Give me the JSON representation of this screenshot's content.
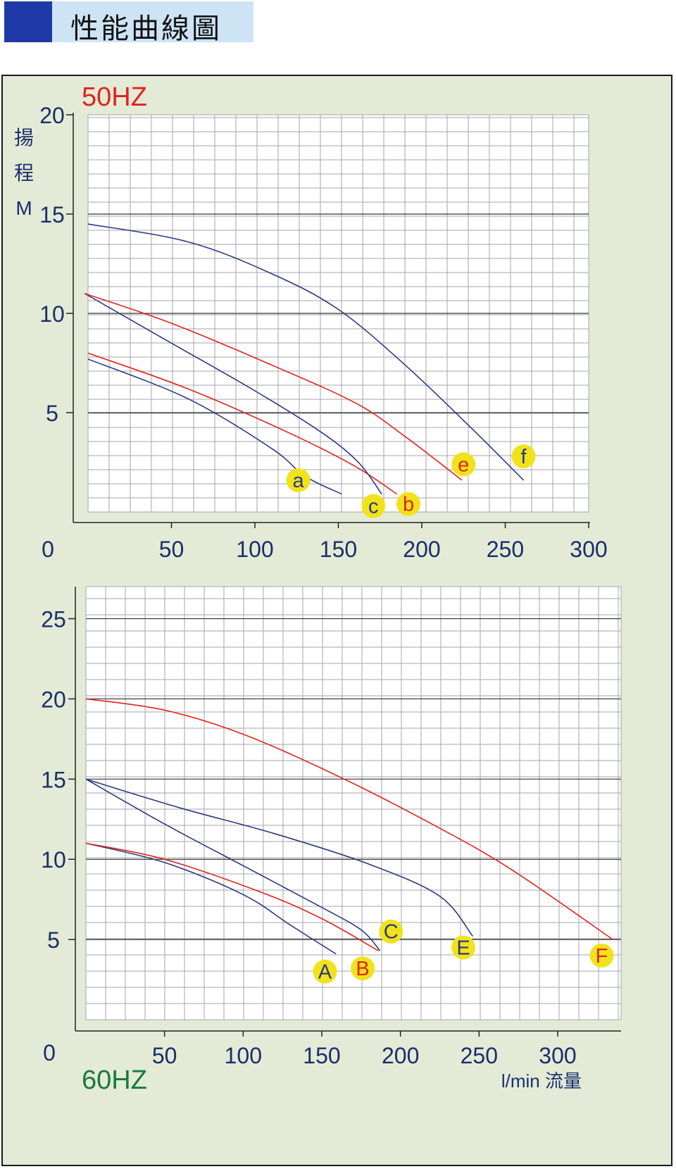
{
  "header": {
    "title": "性能曲線圖"
  },
  "colors": {
    "blue": "#2b3a80",
    "red": "#e0241c",
    "green": "#1a7a3a",
    "marker": "#f2e21b",
    "axis_text": "#1c2d6b"
  },
  "chart_data": [
    {
      "type": "line",
      "title": "50HZ",
      "ylabel": "揚程M",
      "xlabel": "",
      "xlim": [
        0,
        300
      ],
      "ylim": [
        0,
        20
      ],
      "x_ticks": [
        "0",
        "50",
        "100",
        "150",
        "200",
        "250",
        "300"
      ],
      "y_ticks": [
        "5",
        "10",
        "15",
        "20"
      ],
      "grid": true,
      "series": [
        {
          "name": "a",
          "color": "blue",
          "points": [
            [
              0,
              7.7
            ],
            [
              60,
              5.7
            ],
            [
              110,
              3.2
            ],
            [
              130,
              1.8
            ],
            [
              152,
              0.9
            ]
          ],
          "label_at": [
            126,
            1.6
          ]
        },
        {
          "name": "b",
          "color": "red",
          "points": [
            [
              0,
              8.0
            ],
            [
              60,
              6.2
            ],
            [
              120,
              4.0
            ],
            [
              160,
              2.3
            ],
            [
              185,
              0.9
            ]
          ],
          "label_at": [
            192,
            0.4
          ]
        },
        {
          "name": "c",
          "color": "blue",
          "points": [
            [
              -2,
              11.0
            ],
            [
              50,
              8.5
            ],
            [
              100,
              6.1
            ],
            [
              140,
              4.0
            ],
            [
              162,
              2.5
            ],
            [
              176,
              0.9
            ]
          ],
          "label_at": [
            171,
            0.3
          ]
        },
        {
          "name": "e",
          "color": "red",
          "points": [
            [
              -2,
              11.0
            ],
            [
              50,
              9.5
            ],
            [
              110,
              7.4
            ],
            [
              160,
              5.5
            ],
            [
              190,
              3.8
            ],
            [
              224,
              1.6
            ]
          ],
          "label_at": [
            225,
            2.4
          ]
        },
        {
          "name": "f",
          "color": "blue",
          "points": [
            [
              0,
              14.5
            ],
            [
              60,
              13.6
            ],
            [
              110,
              12.0
            ],
            [
              150,
              10.2
            ],
            [
              190,
              7.4
            ],
            [
              230,
              4.2
            ],
            [
              261,
              1.6
            ]
          ],
          "label_at": [
            261,
            2.8
          ]
        }
      ]
    },
    {
      "type": "line",
      "title": "60HZ",
      "ylabel": "",
      "xlabel": "l/min 流量",
      "xlim": [
        0,
        335
      ],
      "ylim": [
        0,
        27
      ],
      "x_ticks": [
        "0",
        "50",
        "100",
        "150",
        "200",
        "250",
        "300"
      ],
      "y_ticks": [
        "5",
        "10",
        "15",
        "20",
        "25"
      ],
      "grid": true,
      "series": [
        {
          "name": "A",
          "color": "blue",
          "points": [
            [
              0,
              11.0
            ],
            [
              50,
              9.8
            ],
            [
              100,
              7.8
            ],
            [
              130,
              5.9
            ],
            [
              159,
              4.1
            ]
          ],
          "label_at": [
            152,
            3.0
          ]
        },
        {
          "name": "B",
          "color": "red",
          "points": [
            [
              0,
              11.0
            ],
            [
              50,
              10.0
            ],
            [
              110,
              8.0
            ],
            [
              150,
              6.3
            ],
            [
              186,
              4.3
            ]
          ],
          "label_at": [
            176,
            3.2
          ]
        },
        {
          "name": "C",
          "color": "blue",
          "points": [
            [
              0,
              15.0
            ],
            [
              50,
              12.2
            ],
            [
              100,
              9.6
            ],
            [
              150,
              7.0
            ],
            [
              175,
              5.6
            ],
            [
              187,
              4.3
            ]
          ],
          "label_at": [
            194,
            5.5
          ]
        },
        {
          "name": "E",
          "color": "blue",
          "points": [
            [
              0,
              15.0
            ],
            [
              60,
              13.2
            ],
            [
              120,
              11.6
            ],
            [
              180,
              9.7
            ],
            [
              225,
              7.7
            ],
            [
              246,
              5.2
            ]
          ],
          "label_at": [
            240,
            4.5
          ]
        },
        {
          "name": "F",
          "color": "red",
          "points": [
            [
              0,
              20.0
            ],
            [
              50,
              19.3
            ],
            [
              100,
              17.8
            ],
            [
              160,
              15.2
            ],
            [
              220,
              12.2
            ],
            [
              270,
              9.4
            ],
            [
              335,
              5.0
            ]
          ],
          "label_at": [
            328,
            4.0
          ]
        }
      ]
    }
  ]
}
